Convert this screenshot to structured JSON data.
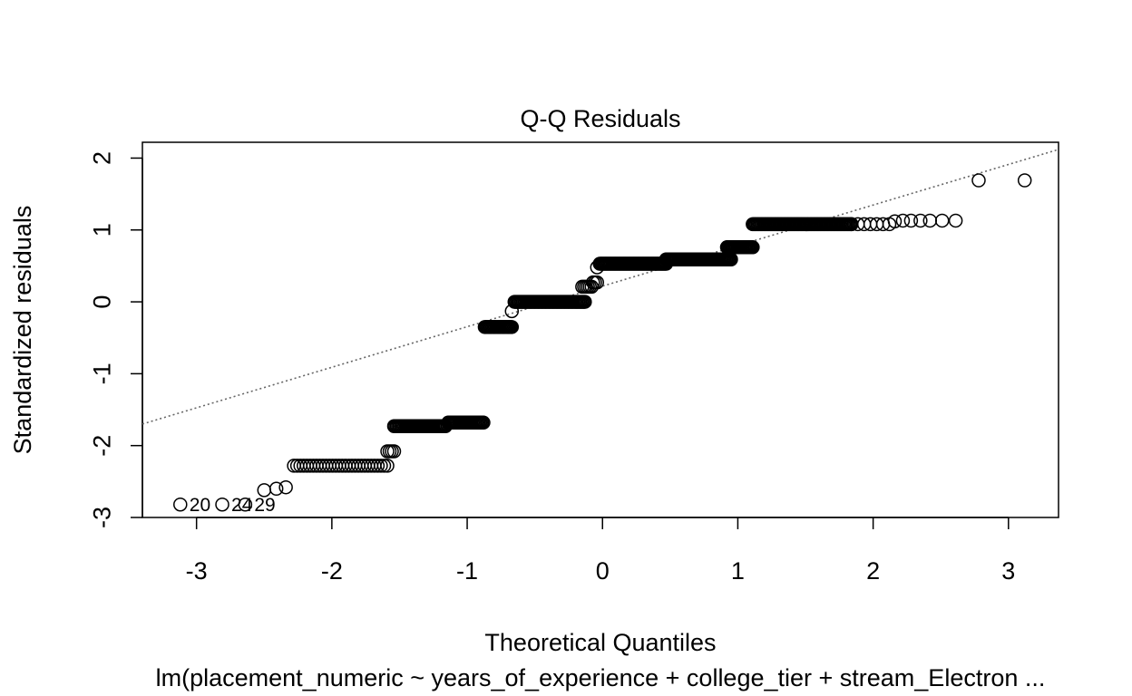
{
  "chart_data": {
    "type": "scatter",
    "title": "Q-Q Residuals",
    "xlabel": "Theoretical Quantiles",
    "ylabel": "Standardized residuals",
    "subtitle": "lm(placement_numeric ~ years_of_experience + college_tier + stream_Electron ...",
    "xlim": [
      -3.4,
      3.37
    ],
    "ylim": [
      -3.0,
      2.22
    ],
    "xticks": [
      -3,
      -2,
      -1,
      0,
      1,
      2,
      3
    ],
    "yticks": [
      -3,
      -2,
      -1,
      0,
      1,
      2
    ],
    "grid": false,
    "legend": "none",
    "point_style": "open-circle",
    "reference_line": {
      "style": "dotted",
      "color": "#666666",
      "x": [
        -3.4,
        3.37
      ],
      "y": [
        -1.7,
        2.12
      ]
    },
    "outlier_labels": [
      {
        "text": "20",
        "x": -3.12,
        "y": -2.82
      },
      {
        "text": "24",
        "x": -2.81,
        "y": -2.82
      },
      {
        "text": "29",
        "x": -2.64,
        "y": -2.82
      }
    ],
    "clusters": [
      {
        "x_from": -3.12,
        "x_to": -3.12,
        "y": -2.82,
        "n": 1
      },
      {
        "x_from": -2.81,
        "x_to": -2.81,
        "y": -2.82,
        "n": 1
      },
      {
        "x_from": -2.64,
        "x_to": -2.64,
        "y": -2.82,
        "n": 1
      },
      {
        "x_from": -2.5,
        "x_to": -2.5,
        "y": -2.62,
        "n": 1
      },
      {
        "x_from": -2.41,
        "x_to": -2.41,
        "y": -2.6,
        "n": 1
      },
      {
        "x_from": -2.34,
        "x_to": -2.34,
        "y": -2.58,
        "n": 1
      },
      {
        "x_from": -2.28,
        "x_to": -1.59,
        "y": -2.28,
        "n": 30
      },
      {
        "x_from": -1.59,
        "x_to": -1.54,
        "y": -2.08,
        "n": 4
      },
      {
        "x_from": -1.54,
        "x_to": -1.16,
        "y": -1.73,
        "n": 40
      },
      {
        "x_from": -1.14,
        "x_to": -0.88,
        "y": -1.68,
        "n": 30
      },
      {
        "x_from": -0.87,
        "x_to": -0.67,
        "y": -0.35,
        "n": 25
      },
      {
        "x_from": -0.67,
        "x_to": -0.67,
        "y": -0.13,
        "n": 1
      },
      {
        "x_from": -0.65,
        "x_to": -0.13,
        "y": 0.0,
        "n": 60
      },
      {
        "x_from": -0.15,
        "x_to": -0.08,
        "y": 0.21,
        "n": 6
      },
      {
        "x_from": -0.07,
        "x_to": -0.04,
        "y": 0.27,
        "n": 3
      },
      {
        "x_from": -0.04,
        "x_to": -0.04,
        "y": 0.48,
        "n": 1
      },
      {
        "x_from": -0.02,
        "x_to": 0.47,
        "y": 0.53,
        "n": 60
      },
      {
        "x_from": 0.47,
        "x_to": 0.95,
        "y": 0.59,
        "n": 60
      },
      {
        "x_from": 0.92,
        "x_to": 1.11,
        "y": 0.76,
        "n": 25
      },
      {
        "x_from": 1.11,
        "x_to": 1.84,
        "y": 1.08,
        "n": 80
      },
      {
        "x_from": 1.84,
        "x_to": 2.12,
        "y": 1.08,
        "n": 7
      },
      {
        "x_from": 2.16,
        "x_to": 2.16,
        "y": 1.12,
        "n": 1
      },
      {
        "x_from": 2.22,
        "x_to": 2.22,
        "y": 1.13,
        "n": 1
      },
      {
        "x_from": 2.28,
        "x_to": 2.28,
        "y": 1.13,
        "n": 1
      },
      {
        "x_from": 2.35,
        "x_to": 2.35,
        "y": 1.13,
        "n": 1
      },
      {
        "x_from": 2.42,
        "x_to": 2.42,
        "y": 1.13,
        "n": 1
      },
      {
        "x_from": 2.51,
        "x_to": 2.51,
        "y": 1.13,
        "n": 1
      },
      {
        "x_from": 2.61,
        "x_to": 2.61,
        "y": 1.13,
        "n": 1
      },
      {
        "x_from": 2.78,
        "x_to": 2.78,
        "y": 1.69,
        "n": 1
      },
      {
        "x_from": 3.12,
        "x_to": 3.12,
        "y": 1.69,
        "n": 1
      }
    ]
  }
}
